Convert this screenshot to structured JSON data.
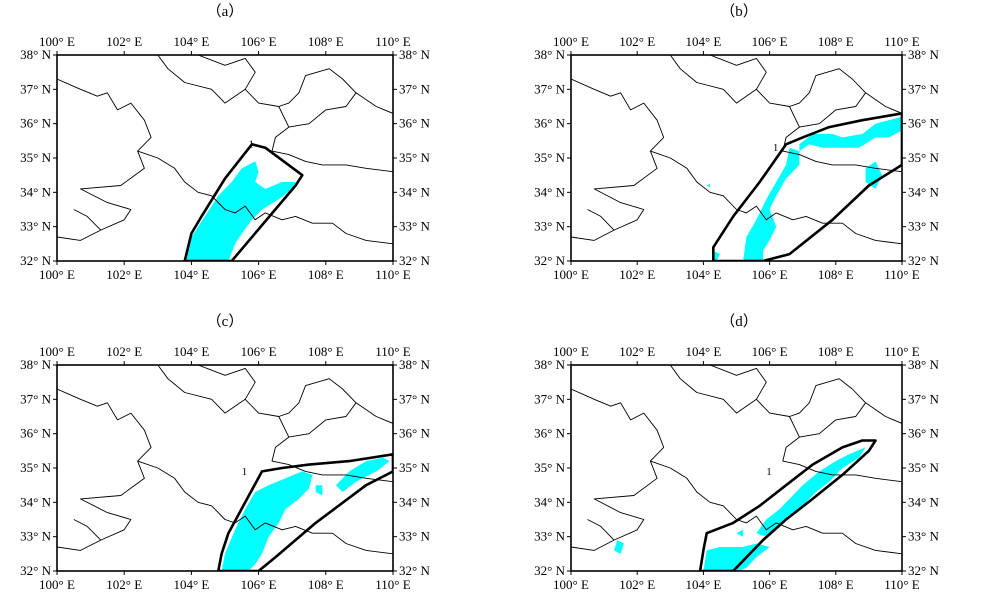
{
  "axes": {
    "lon_min": 100,
    "lon_max": 110,
    "lat_min": 32,
    "lat_max": 38,
    "lon_ticks": [
      100,
      102,
      104,
      106,
      108,
      110
    ],
    "lat_ticks": [
      32,
      33,
      34,
      35,
      36,
      37,
      38
    ],
    "lon_suffix": "° E",
    "lat_suffix": "° N"
  },
  "colors": {
    "fill": "#00ffff",
    "outline": "#000000",
    "border": "#000000",
    "frame": "#000000"
  },
  "borders": [
    [
      [
        100.0,
        37.3
      ],
      [
        100.7,
        37.0
      ],
      [
        101.2,
        36.8
      ],
      [
        101.5,
        36.9
      ],
      [
        101.8,
        36.4
      ],
      [
        102.2,
        36.6
      ],
      [
        102.6,
        36.1
      ],
      [
        102.8,
        35.6
      ],
      [
        102.4,
        35.2
      ],
      [
        102.6,
        34.7
      ],
      [
        101.9,
        34.2
      ],
      [
        100.7,
        34.1
      ],
      [
        101.5,
        33.7
      ],
      [
        102.2,
        33.5
      ],
      [
        102.0,
        33.2
      ],
      [
        101.3,
        32.9
      ],
      [
        100.7,
        32.6
      ],
      [
        100.0,
        32.7
      ]
    ],
    [
      [
        102.4,
        35.2
      ],
      [
        103.0,
        35.0
      ],
      [
        103.5,
        34.7
      ],
      [
        103.8,
        34.3
      ],
      [
        104.2,
        34.0
      ],
      [
        104.6,
        33.9
      ],
      [
        105.0,
        33.5
      ],
      [
        105.3,
        33.4
      ],
      [
        105.6,
        33.6
      ],
      [
        105.9,
        33.2
      ],
      [
        106.2,
        33.4
      ],
      [
        106.7,
        33.2
      ],
      [
        107.1,
        33.3
      ],
      [
        107.6,
        33.1
      ],
      [
        108.2,
        33.1
      ],
      [
        108.6,
        32.8
      ],
      [
        109.2,
        32.6
      ],
      [
        110.0,
        32.5
      ]
    ],
    [
      [
        104.2,
        38.0
      ],
      [
        105.0,
        37.7
      ],
      [
        105.6,
        37.9
      ],
      [
        105.9,
        37.5
      ],
      [
        105.6,
        37.0
      ],
      [
        106.0,
        36.6
      ],
      [
        106.6,
        36.5
      ],
      [
        106.9,
        35.9
      ],
      [
        106.5,
        35.6
      ],
      [
        106.4,
        35.2
      ],
      [
        106.9,
        35.1
      ],
      [
        107.4,
        34.9
      ],
      [
        107.9,
        34.8
      ],
      [
        108.6,
        34.8
      ],
      [
        109.2,
        34.7
      ],
      [
        110.0,
        34.6
      ]
    ],
    [
      [
        106.9,
        35.9
      ],
      [
        107.5,
        36.0
      ],
      [
        108.0,
        36.4
      ],
      [
        108.6,
        36.5
      ],
      [
        108.9,
        36.9
      ],
      [
        108.5,
        37.3
      ],
      [
        108.1,
        37.6
      ],
      [
        107.4,
        37.4
      ],
      [
        107.2,
        36.9
      ],
      [
        106.9,
        36.6
      ],
      [
        106.6,
        36.5
      ]
    ],
    [
      [
        108.9,
        36.9
      ],
      [
        109.5,
        36.5
      ],
      [
        110.0,
        36.3
      ]
    ],
    [
      [
        103.0,
        38.0
      ],
      [
        103.3,
        37.6
      ],
      [
        103.8,
        37.2
      ],
      [
        104.6,
        37.0
      ],
      [
        105.0,
        36.6
      ],
      [
        105.6,
        37.0
      ]
    ],
    [
      [
        100.5,
        33.5
      ],
      [
        100.9,
        33.3
      ],
      [
        101.3,
        32.9
      ]
    ]
  ],
  "panels": [
    {
      "label": "（a）",
      "contour_label": "1",
      "label_pos": [
        105.7,
        35.3
      ],
      "outline": [
        [
          103.8,
          32.0
        ],
        [
          104.0,
          32.8
        ],
        [
          104.3,
          33.3
        ],
        [
          105.0,
          34.4
        ],
        [
          105.8,
          35.4
        ],
        [
          106.2,
          35.3
        ],
        [
          107.3,
          34.5
        ],
        [
          107.1,
          34.2
        ],
        [
          105.2,
          32.0
        ]
      ],
      "fill": [
        [
          [
            103.8,
            32.0
          ],
          [
            104.0,
            32.7
          ],
          [
            104.4,
            33.3
          ],
          [
            104.8,
            33.9
          ],
          [
            105.2,
            34.3
          ],
          [
            105.5,
            34.7
          ],
          [
            105.9,
            34.9
          ],
          [
            106.0,
            34.6
          ],
          [
            105.9,
            34.3
          ],
          [
            106.2,
            34.1
          ],
          [
            106.7,
            34.3
          ],
          [
            107.1,
            34.3
          ],
          [
            107.0,
            34.1
          ],
          [
            106.6,
            33.8
          ],
          [
            106.1,
            33.5
          ],
          [
            105.8,
            33.2
          ],
          [
            105.5,
            32.8
          ],
          [
            105.3,
            32.5
          ],
          [
            105.1,
            32.0
          ]
        ]
      ]
    },
    {
      "label": "（b）",
      "contour_label": "1",
      "label_pos": [
        106.1,
        35.2
      ],
      "outline": [
        [
          104.3,
          32.0
        ],
        [
          104.3,
          32.4
        ],
        [
          104.9,
          33.3
        ],
        [
          105.7,
          34.3
        ],
        [
          106.5,
          35.4
        ],
        [
          107.0,
          35.6
        ],
        [
          107.8,
          35.9
        ],
        [
          108.8,
          36.1
        ],
        [
          110.0,
          36.3
        ],
        [
          110.0,
          34.8
        ],
        [
          109.0,
          34.2
        ],
        [
          107.9,
          33.2
        ],
        [
          106.6,
          32.2
        ],
        [
          105.8,
          32.0
        ]
      ],
      "fill": [
        [
          [
            104.3,
            32.0
          ],
          [
            104.3,
            32.3
          ],
          [
            104.5,
            32.2
          ],
          [
            104.4,
            32.0
          ]
        ],
        [
          [
            105.2,
            32.0
          ],
          [
            105.3,
            32.7
          ],
          [
            105.6,
            33.2
          ],
          [
            105.9,
            33.8
          ],
          [
            106.2,
            34.3
          ],
          [
            106.5,
            34.8
          ],
          [
            106.6,
            35.3
          ],
          [
            106.9,
            35.2
          ],
          [
            107.2,
            35.4
          ],
          [
            107.6,
            35.3
          ],
          [
            108.2,
            35.3
          ],
          [
            108.7,
            35.3
          ],
          [
            109.2,
            35.6
          ],
          [
            109.6,
            35.6
          ],
          [
            110.0,
            35.8
          ],
          [
            110.0,
            36.2
          ],
          [
            109.2,
            36.0
          ],
          [
            108.8,
            35.7
          ],
          [
            108.2,
            35.6
          ],
          [
            107.9,
            35.7
          ],
          [
            107.3,
            35.7
          ],
          [
            106.9,
            35.4
          ],
          [
            106.9,
            34.8
          ],
          [
            106.5,
            34.4
          ],
          [
            106.2,
            33.9
          ],
          [
            106.0,
            33.5
          ],
          [
            106.2,
            33.0
          ],
          [
            106.0,
            32.6
          ],
          [
            105.8,
            32.3
          ],
          [
            105.8,
            32.0
          ]
        ],
        [
          [
            108.9,
            34.3
          ],
          [
            109.2,
            34.1
          ],
          [
            109.4,
            34.5
          ],
          [
            109.2,
            34.9
          ],
          [
            108.9,
            34.7
          ]
        ],
        [
          [
            104.1,
            34.2
          ],
          [
            104.2,
            34.15
          ],
          [
            104.2,
            34.25
          ]
        ]
      ]
    },
    {
      "label": "（c）",
      "contour_label": "1",
      "label_pos": [
        105.5,
        34.8
      ],
      "outline": [
        [
          104.8,
          32.0
        ],
        [
          104.9,
          32.5
        ],
        [
          105.1,
          33.1
        ],
        [
          105.6,
          34.0
        ],
        [
          106.1,
          34.9
        ],
        [
          106.7,
          35.0
        ],
        [
          107.5,
          35.1
        ],
        [
          108.7,
          35.2
        ],
        [
          110.0,
          35.4
        ],
        [
          110.0,
          34.9
        ],
        [
          109.2,
          34.5
        ],
        [
          107.7,
          33.4
        ],
        [
          106.5,
          32.4
        ],
        [
          106.0,
          32.0
        ]
      ],
      "fill": [
        [
          [
            104.9,
            32.0
          ],
          [
            105.0,
            32.5
          ],
          [
            105.3,
            33.2
          ],
          [
            105.6,
            33.8
          ],
          [
            105.9,
            34.3
          ],
          [
            106.3,
            34.5
          ],
          [
            106.8,
            34.7
          ],
          [
            107.3,
            34.9
          ],
          [
            107.6,
            34.8
          ],
          [
            107.5,
            34.4
          ],
          [
            107.2,
            34.1
          ],
          [
            106.8,
            33.8
          ],
          [
            106.6,
            33.4
          ],
          [
            106.3,
            33.0
          ],
          [
            106.1,
            32.5
          ],
          [
            105.9,
            32.2
          ],
          [
            105.7,
            32.0
          ]
        ],
        [
          [
            108.3,
            34.5
          ],
          [
            108.5,
            34.3
          ],
          [
            108.9,
            34.6
          ],
          [
            109.5,
            34.9
          ],
          [
            109.9,
            35.2
          ],
          [
            109.7,
            35.3
          ],
          [
            109.2,
            35.2
          ],
          [
            108.7,
            34.9
          ]
        ],
        [
          [
            107.7,
            34.3
          ],
          [
            107.9,
            34.2
          ],
          [
            107.9,
            34.5
          ],
          [
            107.7,
            34.5
          ]
        ]
      ]
    },
    {
      "label": "（d）",
      "contour_label": "1",
      "label_pos": [
        105.9,
        34.8
      ],
      "outline": [
        [
          103.9,
          32.0
        ],
        [
          104.0,
          32.6
        ],
        [
          104.1,
          33.1
        ],
        [
          104.9,
          33.4
        ],
        [
          105.7,
          33.9
        ],
        [
          106.5,
          34.5
        ],
        [
          107.3,
          35.1
        ],
        [
          108.2,
          35.6
        ],
        [
          108.8,
          35.8
        ],
        [
          109.2,
          35.8
        ],
        [
          109.0,
          35.5
        ],
        [
          108.2,
          34.8
        ],
        [
          107.3,
          34.1
        ],
        [
          106.5,
          33.5
        ],
        [
          105.8,
          32.9
        ],
        [
          105.3,
          32.4
        ],
        [
          104.9,
          32.0
        ]
      ],
      "fill": [
        [
          [
            104.0,
            32.0
          ],
          [
            104.1,
            32.6
          ],
          [
            104.5,
            32.7
          ],
          [
            105.2,
            32.7
          ],
          [
            105.6,
            32.8
          ],
          [
            106.0,
            32.7
          ],
          [
            105.6,
            32.4
          ],
          [
            105.3,
            32.1
          ],
          [
            105.1,
            32.0
          ]
        ],
        [
          [
            105.6,
            33.1
          ],
          [
            105.9,
            33.5
          ],
          [
            106.3,
            33.8
          ],
          [
            106.6,
            34.1
          ],
          [
            107.0,
            34.5
          ],
          [
            107.5,
            34.9
          ],
          [
            108.0,
            35.2
          ],
          [
            108.4,
            35.4
          ],
          [
            108.9,
            35.6
          ],
          [
            108.7,
            35.3
          ],
          [
            108.2,
            35.0
          ],
          [
            107.8,
            34.6
          ],
          [
            107.4,
            34.3
          ],
          [
            107.0,
            33.9
          ],
          [
            106.6,
            33.6
          ],
          [
            106.2,
            33.3
          ],
          [
            105.9,
            33.0
          ]
        ],
        [
          [
            101.3,
            32.6
          ],
          [
            101.5,
            32.5
          ],
          [
            101.6,
            32.8
          ],
          [
            101.4,
            32.9
          ]
        ],
        [
          [
            105.0,
            33.1
          ],
          [
            105.2,
            33.0
          ],
          [
            105.2,
            33.2
          ]
        ]
      ]
    }
  ]
}
